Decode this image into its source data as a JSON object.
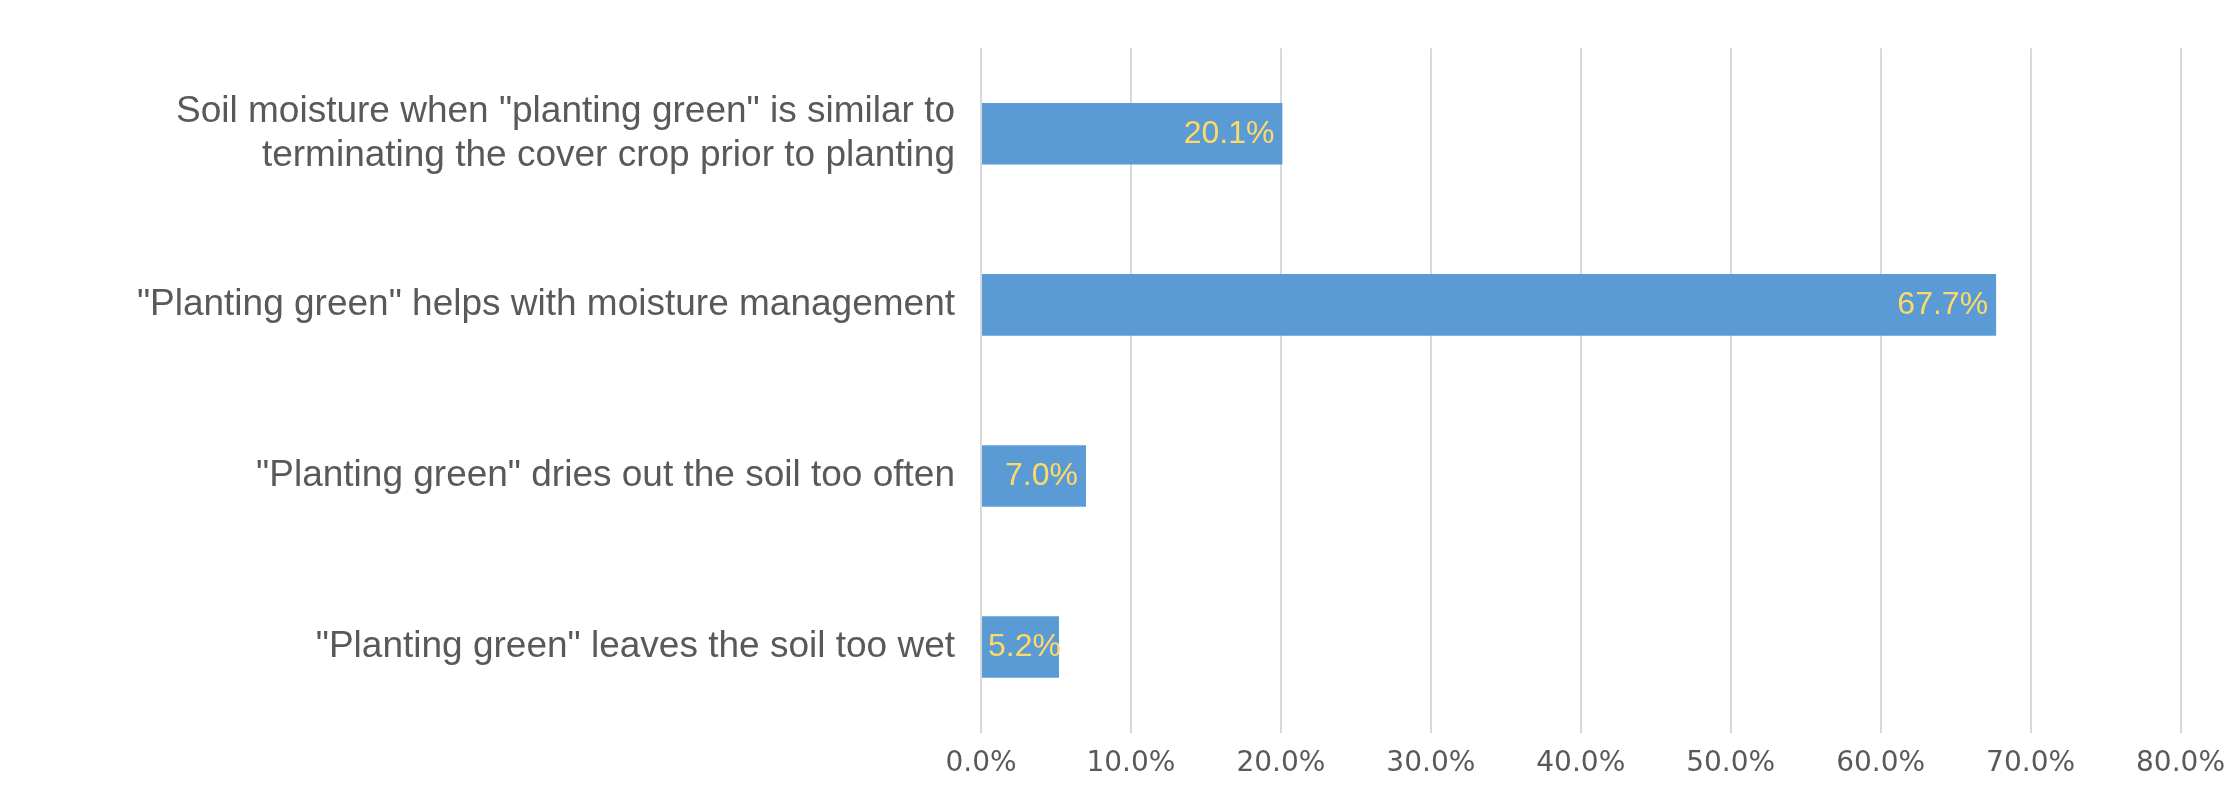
{
  "chart_data": {
    "type": "bar",
    "orientation": "horizontal",
    "categories": [
      "Soil moisture when \"planting green\" is similar to terminating the cover crop prior to planting",
      "\"Planting green\" helps with moisture management",
      "\"Planting green\" dries out the soil too often",
      "\"Planting green\" leaves the soil too wet"
    ],
    "values": [
      20.1,
      67.7,
      7.0,
      5.2
    ],
    "value_labels": [
      "20.1%",
      "67.7%",
      "7.0%",
      "5.2%"
    ],
    "color": "#5b9bd5",
    "xlim": [
      0,
      80
    ],
    "xticks": [
      {
        "value": 0,
        "label": "0.0%"
      },
      {
        "value": 10,
        "label": "10.0%"
      },
      {
        "value": 20,
        "label": "20.0%"
      },
      {
        "value": 30,
        "label": "30.0%"
      },
      {
        "value": 40,
        "label": "40.0%"
      },
      {
        "value": 50,
        "label": "50.0%"
      },
      {
        "value": 60,
        "label": "60.0%"
      },
      {
        "value": 70,
        "label": "70.0%"
      },
      {
        "value": 80,
        "label": "80.0%"
      }
    ],
    "grid": "x",
    "legend": false
  }
}
